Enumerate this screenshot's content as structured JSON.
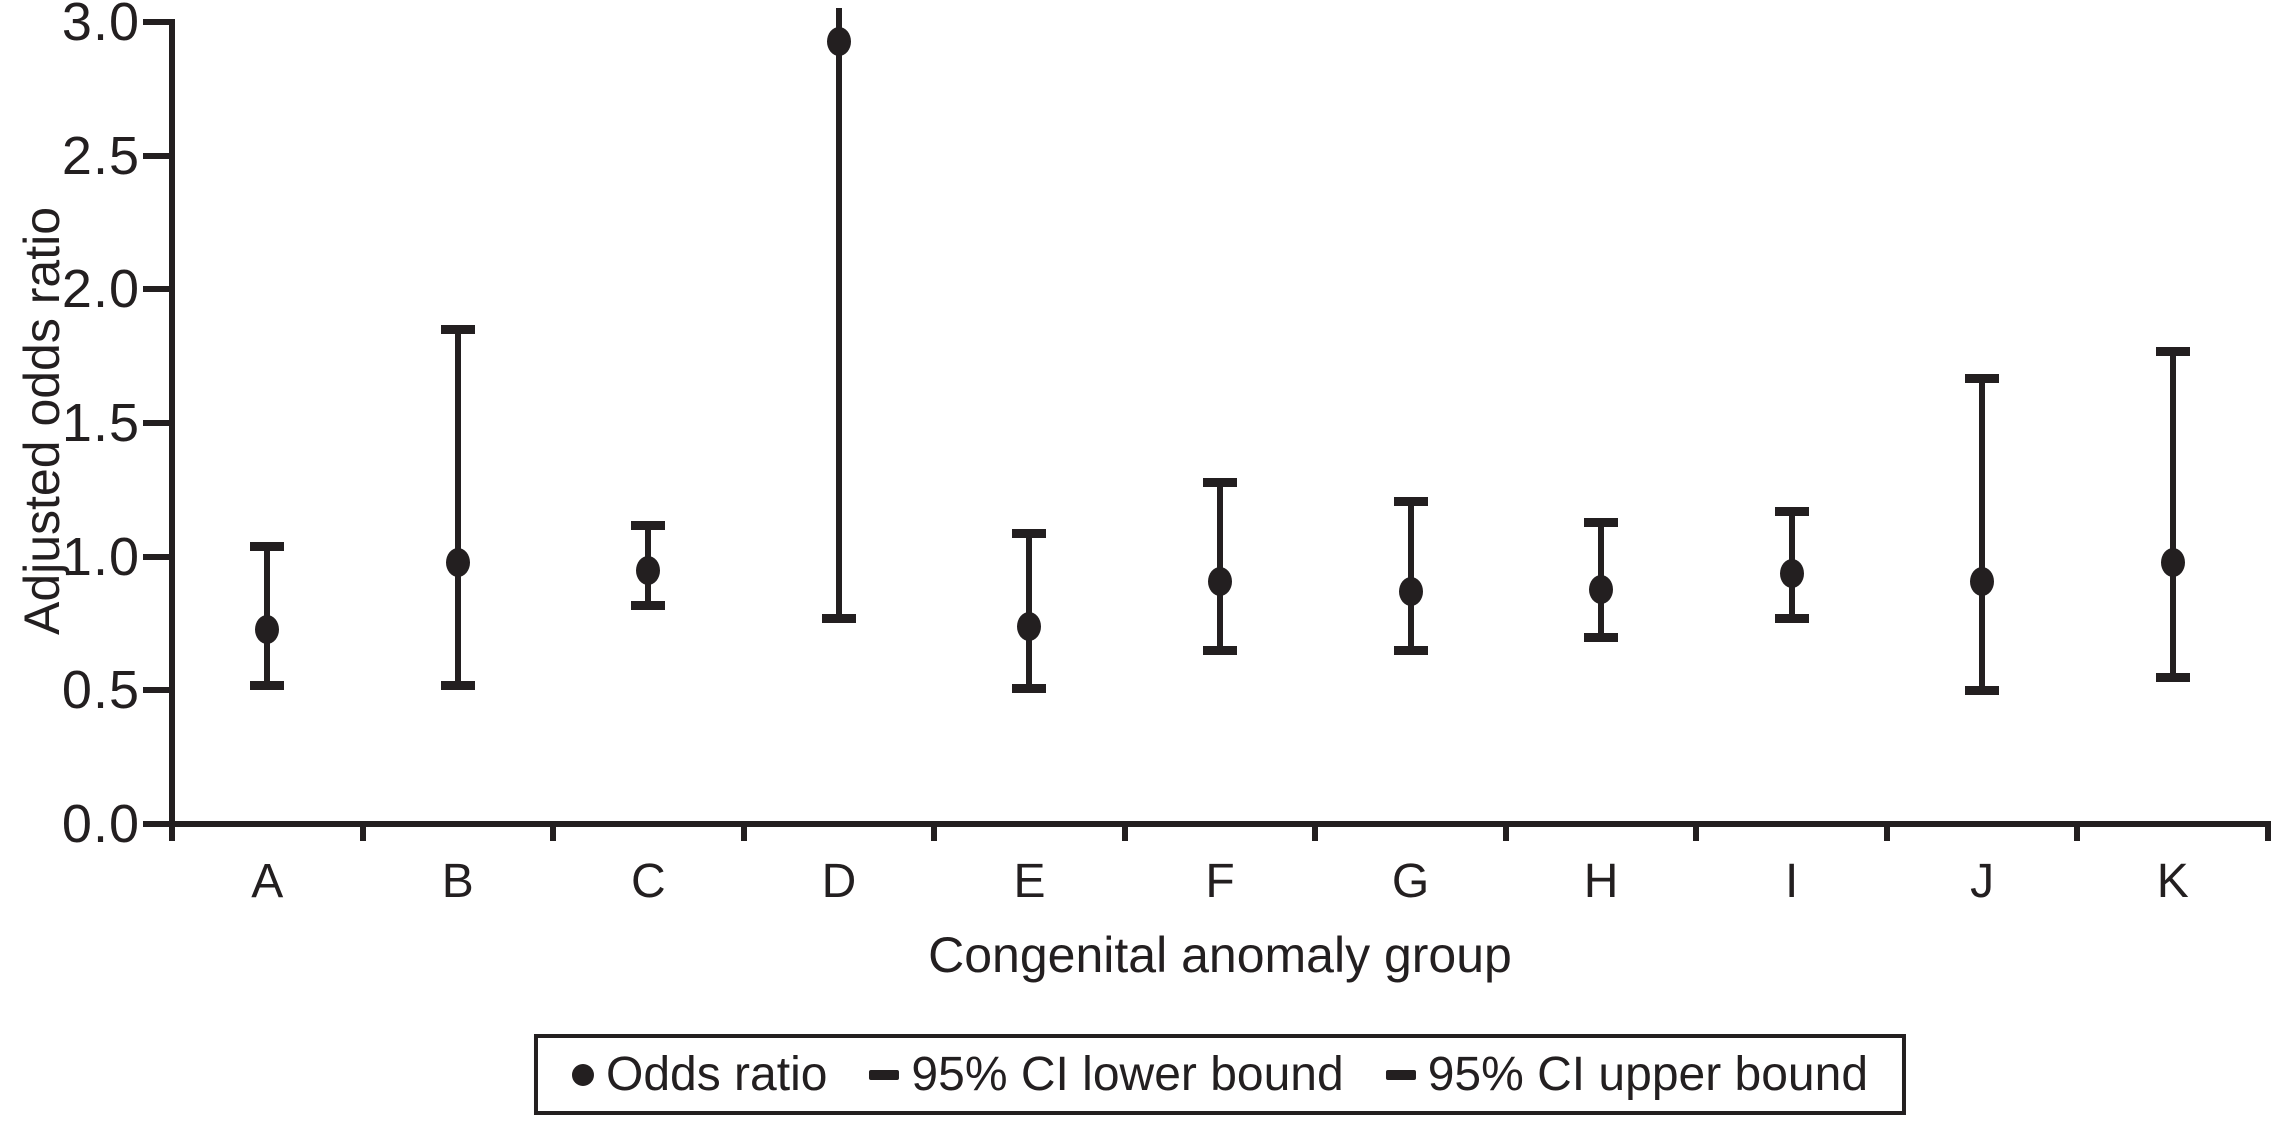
{
  "chart_data": {
    "type": "errorbar",
    "title": "",
    "xlabel": "Congenital anomaly group",
    "ylabel": "Adjusted odds ratio",
    "ylim": [
      0.0,
      3.0
    ],
    "ytick_step": 0.5,
    "ytick_labels": [
      "0.0",
      "0.5",
      "1.0",
      "1.5",
      "2.0",
      "2.5",
      "3.0"
    ],
    "grid": false,
    "legend_position": "bottom",
    "categories": [
      "A",
      "B",
      "C",
      "D",
      "E",
      "F",
      "G",
      "H",
      "I",
      "J",
      "K"
    ],
    "points": [
      {
        "group": "A",
        "odds_ratio": 0.73,
        "ci_lower": 0.52,
        "ci_upper": 1.04,
        "ci_upper_offscale": false
      },
      {
        "group": "B",
        "odds_ratio": 0.98,
        "ci_lower": 0.52,
        "ci_upper": 1.85,
        "ci_upper_offscale": false
      },
      {
        "group": "C",
        "odds_ratio": 0.95,
        "ci_lower": 0.82,
        "ci_upper": 1.12,
        "ci_upper_offscale": false
      },
      {
        "group": "D",
        "odds_ratio": 2.93,
        "ci_lower": 0.77,
        "ci_upper": null,
        "ci_upper_offscale": true
      },
      {
        "group": "E",
        "odds_ratio": 0.74,
        "ci_lower": 0.51,
        "ci_upper": 1.09,
        "ci_upper_offscale": false
      },
      {
        "group": "F",
        "odds_ratio": 0.91,
        "ci_lower": 0.65,
        "ci_upper": 1.28,
        "ci_upper_offscale": false
      },
      {
        "group": "G",
        "odds_ratio": 0.87,
        "ci_lower": 0.65,
        "ci_upper": 1.21,
        "ci_upper_offscale": false
      },
      {
        "group": "H",
        "odds_ratio": 0.88,
        "ci_lower": 0.7,
        "ci_upper": 1.13,
        "ci_upper_offscale": false
      },
      {
        "group": "I",
        "odds_ratio": 0.94,
        "ci_lower": 0.77,
        "ci_upper": 1.17,
        "ci_upper_offscale": false
      },
      {
        "group": "J",
        "odds_ratio": 0.91,
        "ci_lower": 0.5,
        "ci_upper": 1.67,
        "ci_upper_offscale": false
      },
      {
        "group": "K",
        "odds_ratio": 0.98,
        "ci_lower": 0.55,
        "ci_upper": 1.77,
        "ci_upper_offscale": false
      }
    ],
    "legend": [
      {
        "marker": "dot",
        "label": "Odds ratio"
      },
      {
        "marker": "dash",
        "label": "95% CI lower bound"
      },
      {
        "marker": "dash",
        "label": "95% CI upper bound"
      }
    ],
    "ink_color": "#231f20",
    "background_color": "#ffffff"
  }
}
